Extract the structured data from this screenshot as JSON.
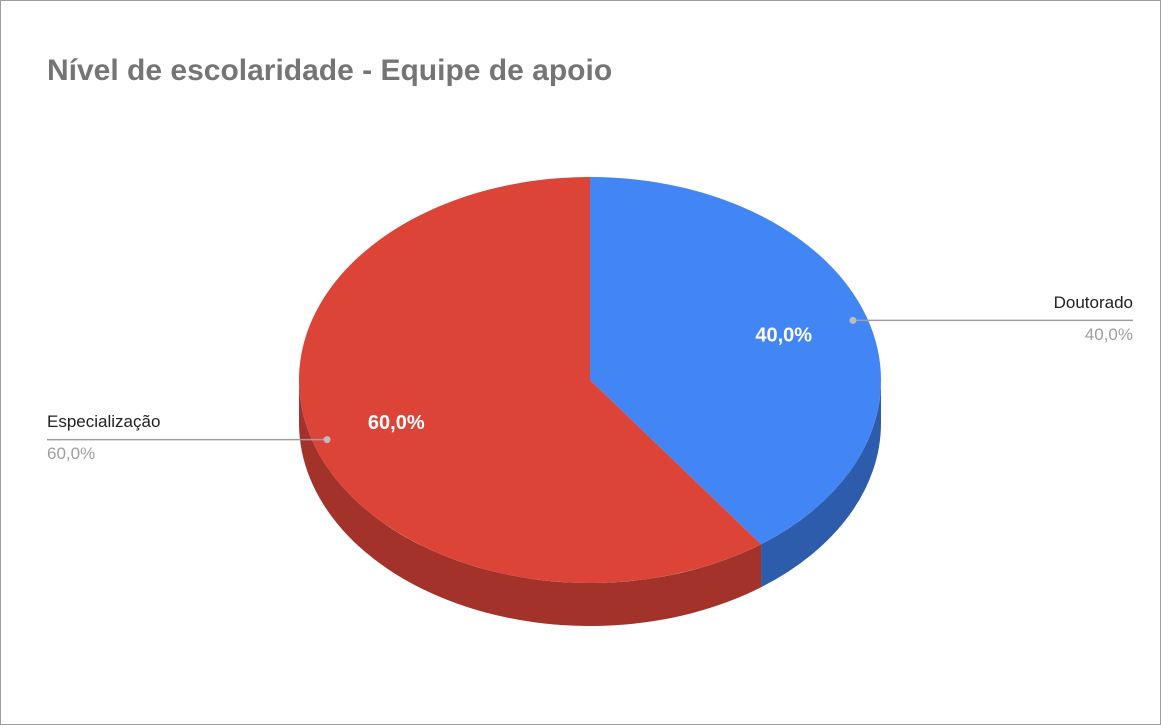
{
  "chart_data": {
    "type": "pie",
    "title": "Nível de escolaridade - Equipe de apoio",
    "categories": [
      "Doutorado",
      "Especialização"
    ],
    "values": [
      40,
      60
    ],
    "value_labels": [
      "40,0%",
      "60,0%"
    ],
    "colors": [
      "#4285f4",
      "#db4437"
    ],
    "side_colors": [
      "#2d5cad",
      "#a3332a"
    ]
  }
}
